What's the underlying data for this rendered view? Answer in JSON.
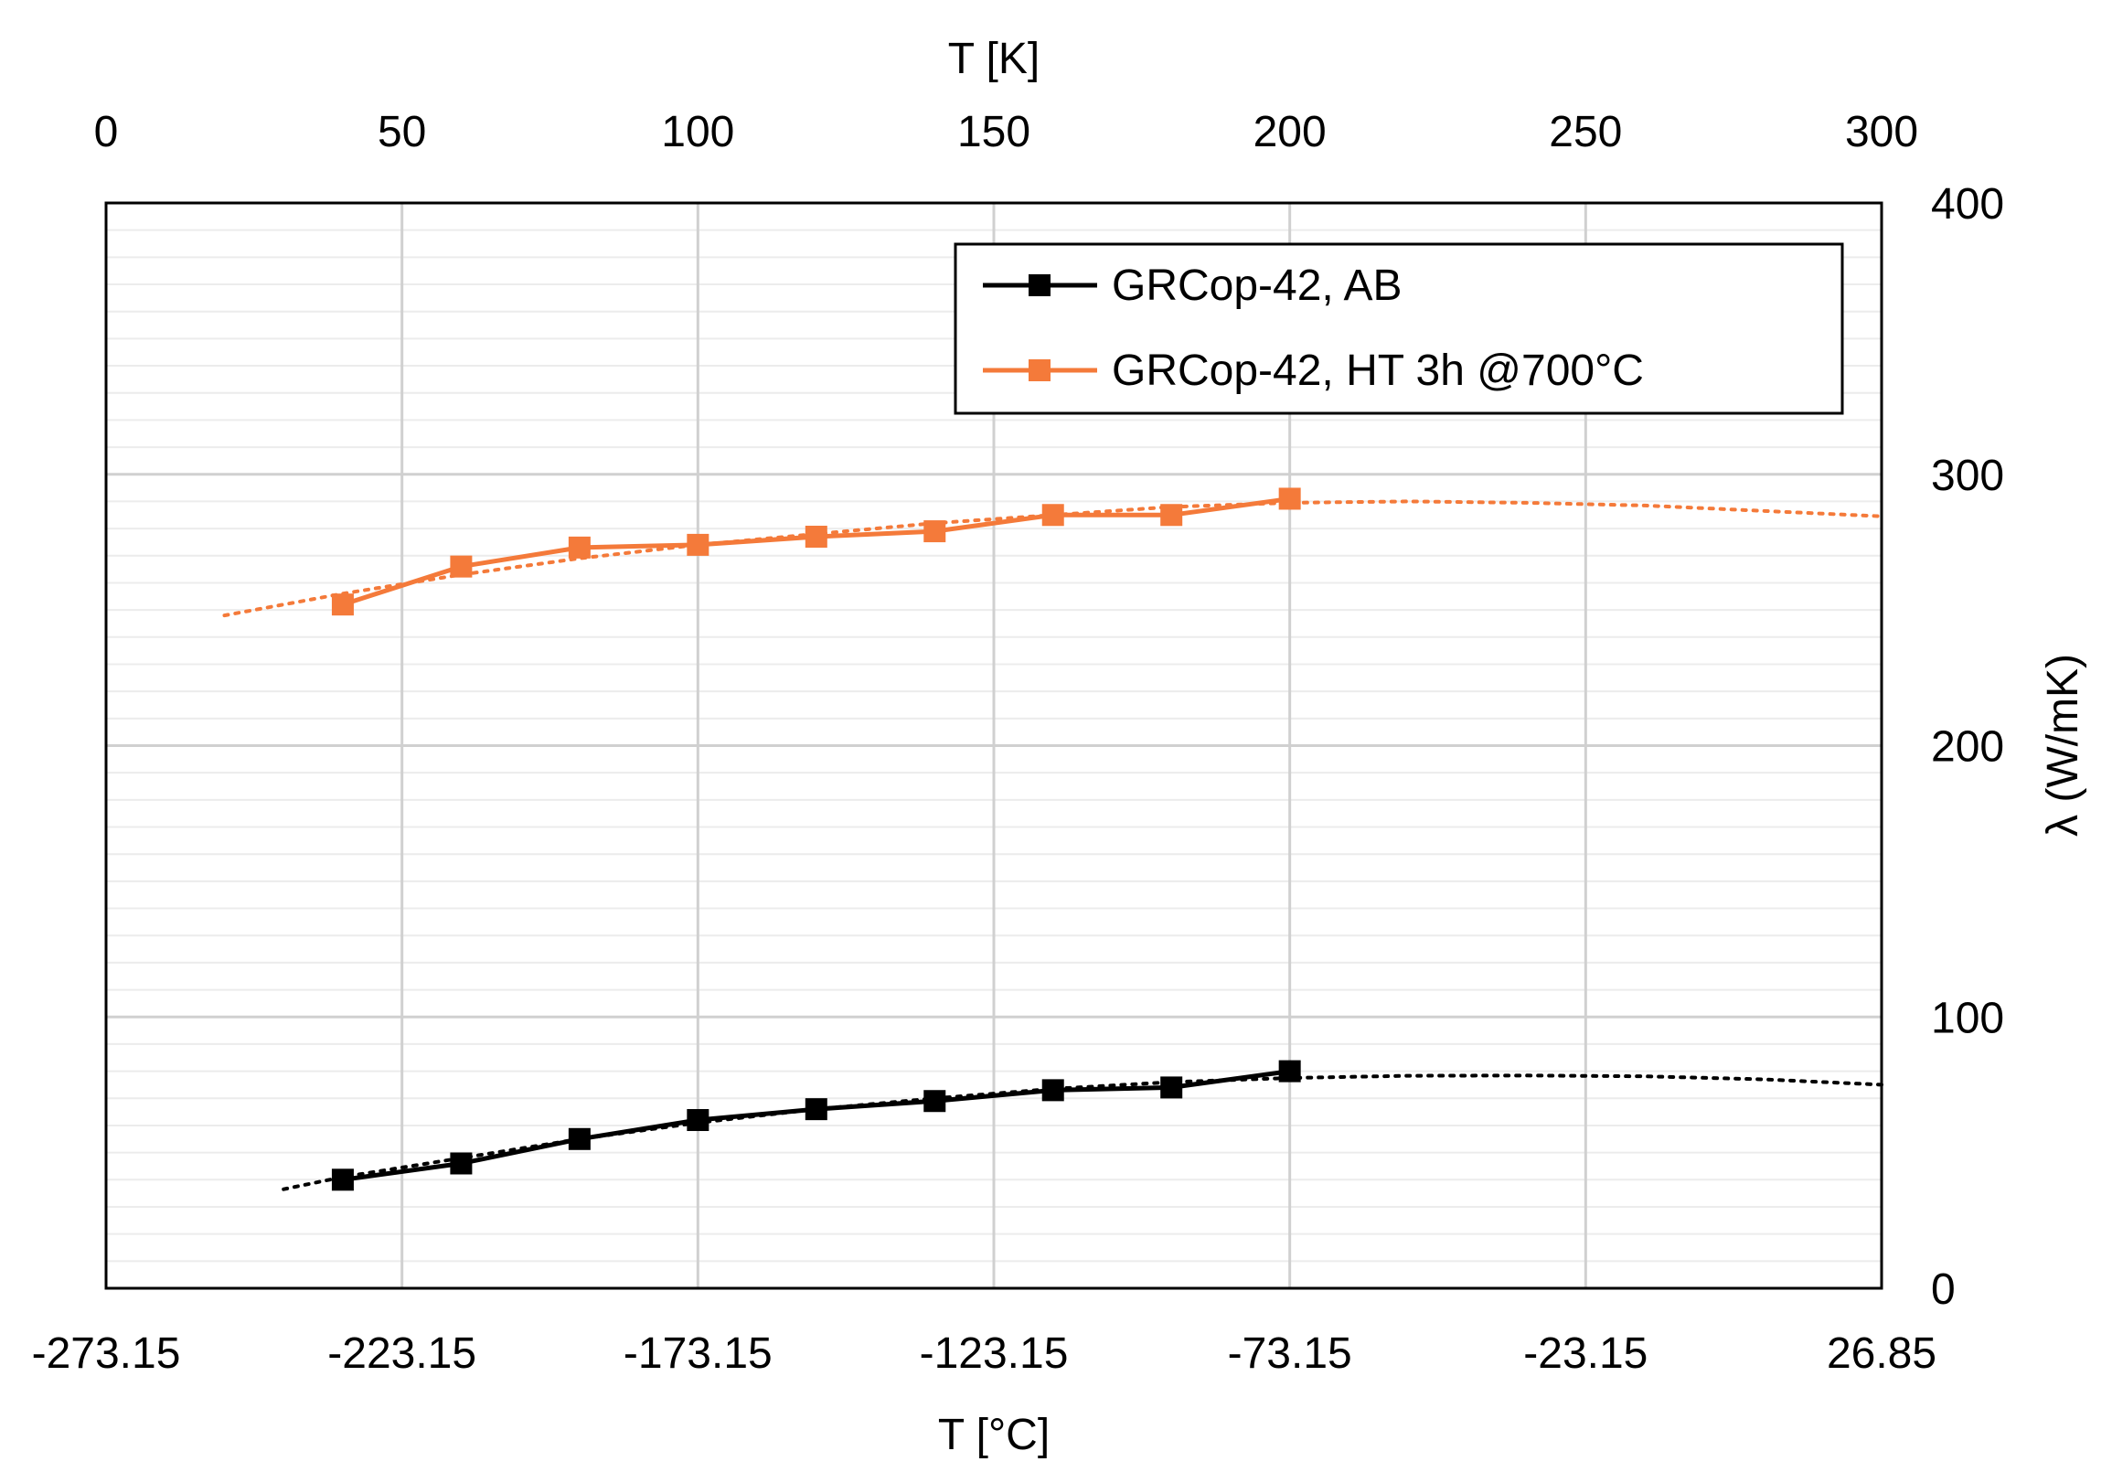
{
  "chart_data": {
    "type": "line",
    "x_axis_top": {
      "label": "T [K]",
      "ticks": [
        "0",
        "50",
        "100",
        "150",
        "200",
        "250",
        "300"
      ],
      "range": [
        0,
        300
      ]
    },
    "x_axis_bottom": {
      "label": "T [°C]",
      "ticks": [
        "-273.15",
        "-223.15",
        "-173.15",
        "-123.15",
        "-73.15",
        "-23.15",
        "26.85"
      ]
    },
    "y_axis": {
      "label": "λ (W/mK)",
      "position": "right",
      "ticks": [
        "0",
        "100",
        "200",
        "300",
        "400"
      ],
      "range": [
        0,
        400
      ],
      "minor_step": 10
    },
    "grid": true,
    "legend_position": "top-right",
    "series": [
      {
        "name": "GRCop-42, AB",
        "color": "#000000",
        "marker": "square",
        "x": [
          40,
          60,
          80,
          100,
          120,
          140,
          160,
          180,
          200
        ],
        "y": [
          40,
          46,
          55,
          62,
          66,
          69,
          73,
          74,
          80
        ],
        "trend": {
          "style": "dotted",
          "x": [
            30,
            40,
            60,
            80,
            100,
            120,
            140,
            160,
            180,
            200,
            220,
            240,
            260,
            280,
            300
          ],
          "y": [
            36.5,
            41,
            48,
            55,
            61,
            66,
            70,
            73.5,
            76,
            77.5,
            78.3,
            78.4,
            78.1,
            77,
            75
          ]
        }
      },
      {
        "name": "GRCop-42, HT 3h @700°C",
        "color": "#f47a3a",
        "marker": "square",
        "x": [
          40,
          60,
          80,
          100,
          120,
          140,
          160,
          180,
          200
        ],
        "y": [
          252,
          266,
          273,
          274,
          277,
          279,
          285,
          285,
          291
        ],
        "trend": {
          "style": "dotted",
          "x": [
            20,
            40,
            60,
            80,
            100,
            120,
            140,
            160,
            180,
            200,
            220,
            240,
            260,
            280,
            300
          ],
          "y": [
            248,
            256,
            263,
            269,
            274,
            278,
            282,
            285,
            288,
            289.5,
            290,
            289.5,
            288.5,
            286.5,
            284.5
          ]
        }
      }
    ]
  }
}
